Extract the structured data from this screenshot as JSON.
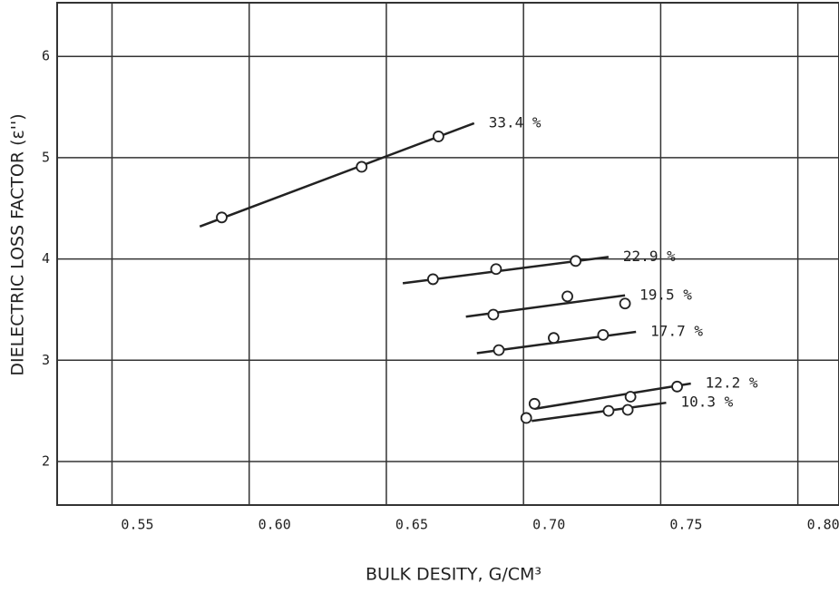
{
  "chart_data": {
    "type": "scatter",
    "xlabel": "BULK  DESITY, G/CM³",
    "ylabel": "DIELECTRIC LOSS FACTOR (ε'')",
    "xlim": [
      0.53,
      0.815
    ],
    "ylim": [
      1.57,
      6.53
    ],
    "xticks": [
      0.55,
      {
        "value": 0.6,
        "label": "0.60"
      },
      0.65,
      {
        "value": 0.7,
        "label": "0.70"
      },
      0.75,
      {
        "value": 0.8,
        "label": "0.80"
      }
    ],
    "yticks": [
      2,
      3,
      4,
      5,
      6
    ],
    "grid": true,
    "series": [
      {
        "name": "33.4 %",
        "color": "#222222",
        "x": [
          0.59,
          0.641,
          0.669
        ],
        "values": [
          4.41,
          4.91,
          5.21
        ],
        "fit": {
          "x": [
            0.582,
            0.682
          ],
          "y": [
            4.32,
            5.34
          ]
        }
      },
      {
        "name": "22.9 %",
        "color": "#222222",
        "x": [
          0.667,
          0.69,
          0.719
        ],
        "values": [
          3.8,
          3.9,
          3.98
        ],
        "fit": {
          "x": [
            0.656,
            0.731
          ],
          "y": [
            3.76,
            4.02
          ]
        }
      },
      {
        "name": "19.5 %",
        "color": "#222222",
        "x": [
          0.689,
          0.716,
          0.737
        ],
        "values": [
          3.45,
          3.63,
          3.56
        ],
        "fit": {
          "x": [
            0.679,
            0.737
          ],
          "y": [
            3.43,
            3.64
          ]
        }
      },
      {
        "name": "17.7 %",
        "color": "#222222",
        "x": [
          0.691,
          0.711,
          0.729
        ],
        "values": [
          3.1,
          3.22,
          3.25
        ],
        "fit": {
          "x": [
            0.683,
            0.741
          ],
          "y": [
            3.07,
            3.28
          ]
        }
      },
      {
        "name": "12.2 %",
        "color": "#222222",
        "x": [
          0.704,
          0.739,
          0.756
        ],
        "values": [
          2.57,
          2.64,
          2.74
        ],
        "fit": {
          "x": [
            0.704,
            0.761
          ],
          "y": [
            2.52,
            2.77
          ]
        }
      },
      {
        "name": "10.3 %",
        "color": "#222222",
        "x": [
          0.701,
          0.731,
          0.738
        ],
        "values": [
          2.43,
          2.5,
          2.51
        ],
        "fit": {
          "x": [
            0.703,
            0.752
          ],
          "y": [
            2.4,
            2.58
          ]
        }
      }
    ]
  }
}
